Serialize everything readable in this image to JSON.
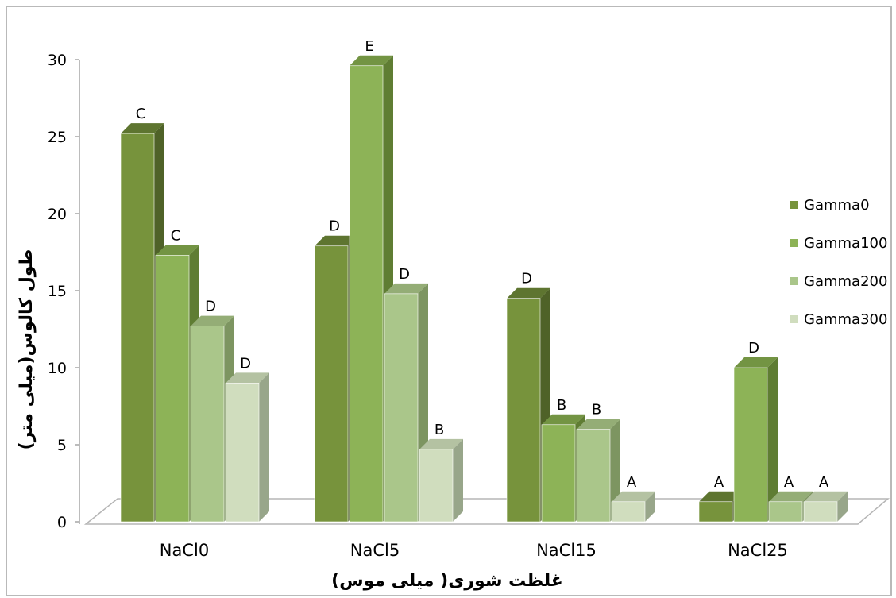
{
  "chart_data": {
    "type": "bar",
    "categories": [
      "NaCl0",
      "NaCl5",
      "NaCl15",
      "NaCl25"
    ],
    "series": [
      {
        "name": "Gamma0",
        "values": [
          25.2,
          17.9,
          14.5,
          1.3
        ],
        "letters": [
          "C",
          "D",
          "D",
          "A"
        ]
      },
      {
        "name": "Gamma100",
        "values": [
          17.3,
          29.6,
          6.3,
          10.0
        ],
        "letters": [
          "C",
          "E",
          "B",
          "D"
        ]
      },
      {
        "name": "Gamma200",
        "values": [
          12.7,
          14.8,
          6.0,
          1.3
        ],
        "letters": [
          "D",
          "D",
          "B",
          "A"
        ]
      },
      {
        "name": "Gamma300",
        "values": [
          9.0,
          4.7,
          1.3,
          1.3
        ],
        "letters": [
          "D",
          "B",
          "A",
          "A"
        ]
      }
    ],
    "ylim": [
      0,
      30
    ],
    "yticks": [
      "0",
      "5",
      "10",
      "15",
      "20",
      "25",
      "30"
    ],
    "xlabel": "غلظت شوری( میلی موس)",
    "ylabel": "طول کالوس(میلی متر)",
    "legend_position": "right",
    "grid": false,
    "colors": {
      "Gamma0": {
        "front": "#77933c",
        "side": "#4f6228",
        "top": "#5e7530"
      },
      "Gamma100": {
        "front": "#8db357",
        "side": "#5f7d33",
        "top": "#739443"
      },
      "Gamma200": {
        "front": "#aac68a",
        "side": "#7d9561",
        "top": "#94ad76"
      },
      "Gamma300": {
        "front": "#d0ddbe",
        "side": "#98a68a",
        "top": "#b4c2a2"
      }
    }
  }
}
